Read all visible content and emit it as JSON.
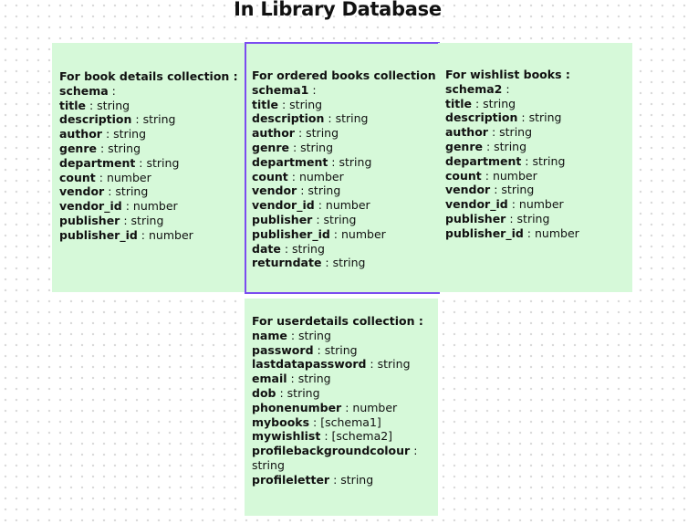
{
  "title": "In Library Database",
  "accent_color": "#7b4cf0",
  "card_color": "#d6f9d9",
  "cards": {
    "book_details": {
      "heading": "For book details collection :",
      "fields": [
        {
          "name": "schema",
          "sep": " :",
          "type": ""
        },
        {
          "name": "title",
          "sep": " : ",
          "type": "string"
        },
        {
          "name": "description",
          "sep": " : ",
          "type": "string"
        },
        {
          "name": "author",
          "sep": " : ",
          "type": "string"
        },
        {
          "name": "genre",
          "sep": " : ",
          "type": "string"
        },
        {
          "name": "department",
          "sep": " : ",
          "type": "string"
        },
        {
          "name": "count",
          "sep": " : ",
          "type": "number"
        },
        {
          "name": "vendor",
          "sep": " : ",
          "type": "string"
        },
        {
          "name": "vendor_id",
          "sep": " : ",
          "type": "number"
        },
        {
          "name": "publisher",
          "sep": " : ",
          "type": "string"
        },
        {
          "name": "publisher_id",
          "sep": " : ",
          "type": "number"
        }
      ]
    },
    "ordered_books": {
      "heading": "For ordered books collection :",
      "fields": [
        {
          "name": "schema1",
          "sep": " :",
          "type": ""
        },
        {
          "name": "title",
          "sep": " : ",
          "type": "string"
        },
        {
          "name": "description",
          "sep": " : ",
          "type": "string"
        },
        {
          "name": "author",
          "sep": " : ",
          "type": "string"
        },
        {
          "name": "genre",
          "sep": " : ",
          "type": "string"
        },
        {
          "name": "department",
          "sep": " : ",
          "type": "string"
        },
        {
          "name": "count",
          "sep": " : ",
          "type": "number"
        },
        {
          "name": "vendor",
          "sep": " : ",
          "type": "string"
        },
        {
          "name": "vendor_id",
          "sep": " : ",
          "type": "number"
        },
        {
          "name": "publisher",
          "sep": " : ",
          "type": "string"
        },
        {
          "name": "publisher_id",
          "sep": " : ",
          "type": "number"
        },
        {
          "name": "date",
          "sep": " : ",
          "type": "string"
        },
        {
          "name": "returndate",
          "sep": " : ",
          "type": "string"
        }
      ]
    },
    "wishlist_books": {
      "heading": "For wishlist books :",
      "fields": [
        {
          "name": "schema2",
          "sep": " :",
          "type": ""
        },
        {
          "name": "title",
          "sep": " : ",
          "type": "string"
        },
        {
          "name": "description",
          "sep": " : ",
          "type": "string"
        },
        {
          "name": "author",
          "sep": " : ",
          "type": "string"
        },
        {
          "name": "genre",
          "sep": " : ",
          "type": "string"
        },
        {
          "name": "department",
          "sep": " : ",
          "type": "string"
        },
        {
          "name": "count",
          "sep": " : ",
          "type": "number"
        },
        {
          "name": "vendor",
          "sep": " : ",
          "type": "string"
        },
        {
          "name": "vendor_id",
          "sep": " : ",
          "type": "number"
        },
        {
          "name": "publisher",
          "sep": " : ",
          "type": "string"
        },
        {
          "name": "publisher_id",
          "sep": " : ",
          "type": "number"
        }
      ]
    },
    "userdetails": {
      "heading": "For userdetails collection :",
      "fields": [
        {
          "name": "name",
          "sep": " : ",
          "type": "string"
        },
        {
          "name": "password",
          "sep": " : ",
          "type": "string"
        },
        {
          "name": "lastdatapassword",
          "sep": " : ",
          "type": "string"
        },
        {
          "name": "email",
          "sep": " : ",
          "type": "string"
        },
        {
          "name": "dob",
          "sep": " : ",
          "type": "string"
        },
        {
          "name": "phonenumber",
          "sep": " : ",
          "type": "number"
        },
        {
          "name": "mybooks",
          "sep": " : ",
          "type": "[schema1]"
        },
        {
          "name": "mywishlist",
          "sep": " : ",
          "type": "[schema2]"
        },
        {
          "name": "profilebackgroundcolour",
          "sep": " : ",
          "type": "string"
        },
        {
          "name": "profileletter",
          "sep": " : ",
          "type": "string"
        }
      ]
    }
  }
}
